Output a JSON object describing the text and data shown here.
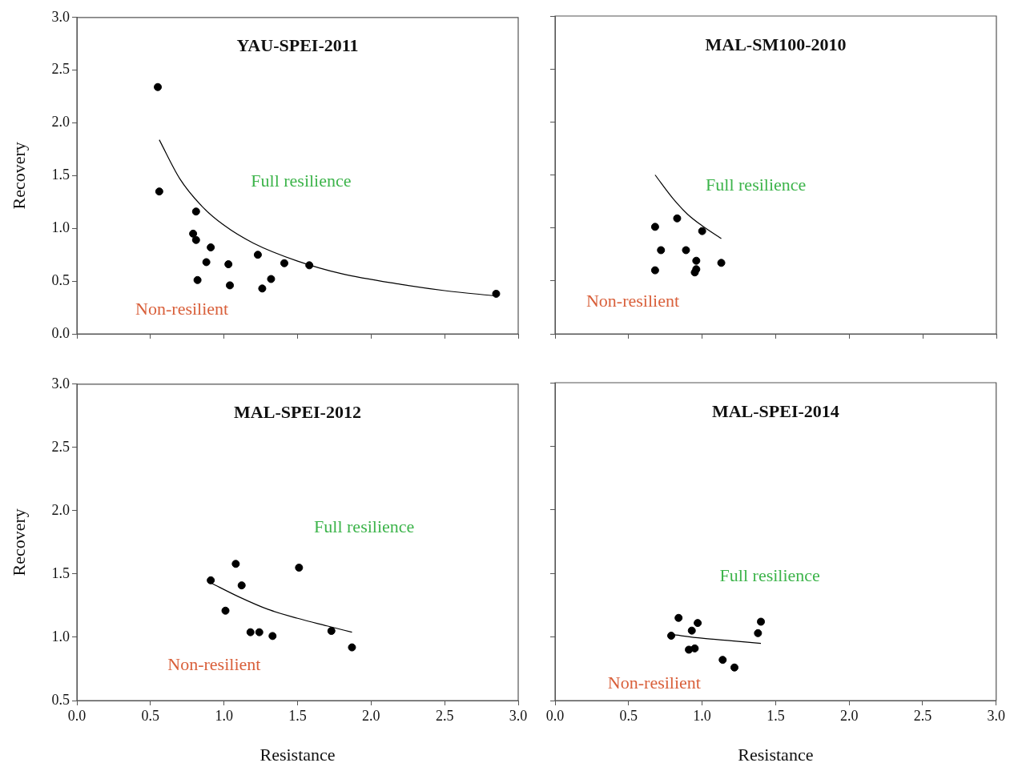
{
  "chart_data": [
    {
      "type": "scatter",
      "title": "YAU-SPEI-2011",
      "ylabel": "Recovery",
      "xlim": [
        0,
        3
      ],
      "ylim": [
        0,
        3
      ],
      "xticks": [
        0,
        0.5,
        1,
        1.5,
        2,
        2.5,
        3
      ],
      "yticks": [
        {
          "value": 0,
          "label": "0.0"
        },
        0.5,
        {
          "value": 1,
          "label": "1.0"
        },
        1.5,
        {
          "value": 2,
          "label": "2.0"
        },
        2.5,
        {
          "value": 3,
          "label": "3.0"
        }
      ],
      "tick_labels": "y",
      "grid": false,
      "legend": false,
      "marker": "circle",
      "annotations": [
        "Full resilience",
        "Non-resilient"
      ],
      "series": [
        {
          "type": "scatter",
          "color": "#000000",
          "x": [
            0.55,
            0.56,
            0.81,
            0.79,
            0.81,
            0.91,
            0.88,
            0.82,
            1.03,
            1.04,
            1.23,
            1.26,
            1.32,
            1.41,
            1.58,
            2.85
          ],
          "values": [
            2.34,
            1.35,
            1.16,
            0.95,
            0.89,
            0.82,
            0.68,
            0.51,
            0.66,
            0.46,
            0.75,
            0.43,
            0.52,
            0.67,
            0.65,
            0.38
          ]
        },
        {
          "type": "line",
          "color": "#000000",
          "marker": "none",
          "x": [
            0.56,
            0.7,
            0.85,
            1.0,
            1.2,
            1.5,
            1.8,
            2.2,
            2.5,
            2.85
          ],
          "values": [
            1.84,
            1.47,
            1.21,
            1.03,
            0.86,
            0.69,
            0.57,
            0.47,
            0.41,
            0.36
          ]
        }
      ]
    },
    {
      "type": "scatter",
      "title": "MAL-SM100-2010",
      "xlim": [
        0,
        3
      ],
      "ylim": [
        0,
        3
      ],
      "xticks": [
        0,
        0.5,
        1,
        1.5,
        2,
        2.5,
        3
      ],
      "yticks": [
        0,
        0.5,
        1,
        1.5,
        2,
        2.5,
        3
      ],
      "tick_labels": false,
      "grid": false,
      "legend": false,
      "marker": "circle",
      "annotations": [
        "Full resilience",
        "Non-resilient"
      ],
      "series": [
        {
          "type": "scatter",
          "color": "#000000",
          "x": [
            0.68,
            0.83,
            1.0,
            0.72,
            0.89,
            0.96,
            0.68,
            0.95,
            0.96,
            1.13
          ],
          "values": [
            1.01,
            1.09,
            0.97,
            0.79,
            0.79,
            0.69,
            0.6,
            0.58,
            0.61,
            0.67
          ]
        },
        {
          "type": "line",
          "color": "#000000",
          "marker": "none",
          "x": [
            0.68,
            0.8,
            0.9,
            1.0,
            1.13
          ],
          "values": [
            1.5,
            1.28,
            1.13,
            1.02,
            0.9
          ]
        }
      ]
    },
    {
      "type": "scatter",
      "title": "MAL-SPEI-2012",
      "xlabel": "Resistance",
      "ylabel": "Recovery",
      "xlim": [
        0,
        3
      ],
      "ylim": [
        0.5,
        3
      ],
      "xticks": [
        {
          "value": 0,
          "label": "0.0"
        },
        0.5,
        {
          "value": 1,
          "label": "1.0"
        },
        1.5,
        {
          "value": 2,
          "label": "2.0"
        },
        2.5,
        {
          "value": 3,
          "label": "3.0"
        }
      ],
      "yticks": [
        0.5,
        {
          "value": 1,
          "label": "1.0"
        },
        1.5,
        {
          "value": 2,
          "label": "2.0"
        },
        2.5,
        {
          "value": 3,
          "label": "3.0"
        }
      ],
      "grid": false,
      "legend": false,
      "marker": "circle",
      "annotations": [
        "Full resilience",
        "Non-resilient"
      ],
      "series": [
        {
          "type": "scatter",
          "color": "#000000",
          "x": [
            0.91,
            1.08,
            1.12,
            1.51,
            1.01,
            1.18,
            1.24,
            1.33,
            1.73,
            1.87
          ],
          "values": [
            1.45,
            1.58,
            1.41,
            1.55,
            1.21,
            1.04,
            1.04,
            1.01,
            1.05,
            0.92
          ]
        },
        {
          "type": "line",
          "color": "#000000",
          "marker": "none",
          "x": [
            0.91,
            1.1,
            1.3,
            1.5,
            1.7,
            1.87
          ],
          "values": [
            1.43,
            1.32,
            1.22,
            1.15,
            1.09,
            1.04
          ]
        }
      ]
    },
    {
      "type": "scatter",
      "title": "MAL-SPEI-2014",
      "xlabel": "Resistance",
      "xlim": [
        0,
        3
      ],
      "ylim": [
        0.5,
        3
      ],
      "xticks": [
        {
          "value": 0,
          "label": "0.0"
        },
        0.5,
        {
          "value": 1,
          "label": "1.0"
        },
        1.5,
        {
          "value": 2,
          "label": "2.0"
        },
        2.5,
        {
          "value": 3,
          "label": "3.0"
        }
      ],
      "yticks": [
        0.5,
        1,
        1.5,
        2,
        2.5,
        3
      ],
      "tick_labels": "x",
      "grid": false,
      "legend": false,
      "marker": "circle",
      "annotations": [
        "Full resilience",
        "Non-resilient"
      ],
      "series": [
        {
          "type": "scatter",
          "color": "#000000",
          "x": [
            0.84,
            0.97,
            0.79,
            0.93,
            0.91,
            0.95,
            1.14,
            1.22,
            1.38,
            1.4
          ],
          "values": [
            1.15,
            1.11,
            1.01,
            1.05,
            0.9,
            0.91,
            0.82,
            0.76,
            1.03,
            1.12
          ]
        },
        {
          "type": "line",
          "color": "#000000",
          "marker": "none",
          "x": [
            0.79,
            1.0,
            1.2,
            1.4
          ],
          "values": [
            1.02,
            0.99,
            0.97,
            0.95
          ]
        }
      ]
    }
  ]
}
